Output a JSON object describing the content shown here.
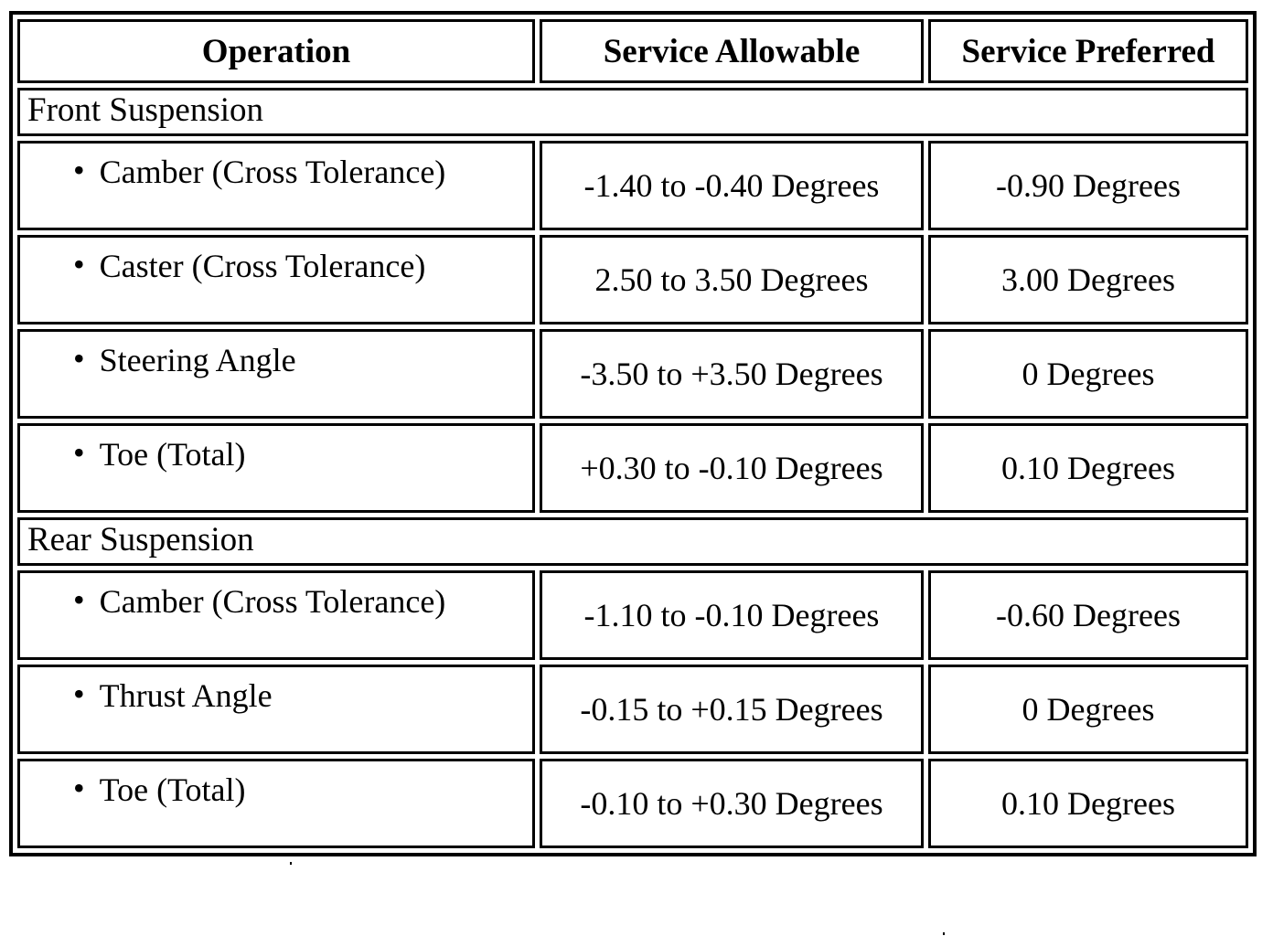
{
  "table": {
    "bullet": "•",
    "columns": [
      "Operation",
      "Service Allowable",
      "Service Preferred"
    ],
    "sections": [
      {
        "title": "Front Suspension",
        "rows": [
          {
            "operation": "Camber (Cross Tolerance)",
            "allowable": "-1.40 to -0.40 Degrees",
            "preferred": "-0.90 Degrees"
          },
          {
            "operation": "Caster (Cross Tolerance)",
            "allowable": "2.50 to 3.50 Degrees",
            "preferred": "3.00 Degrees"
          },
          {
            "operation": "Steering Angle",
            "allowable": "-3.50 to +3.50 Degrees",
            "preferred": "0 Degrees"
          },
          {
            "operation": "Toe (Total)",
            "allowable": "+0.30 to -0.10 Degrees",
            "preferred": "0.10 Degrees"
          }
        ]
      },
      {
        "title": "Rear Suspension",
        "rows": [
          {
            "operation": "Camber (Cross Tolerance)",
            "allowable": "-1.10 to -0.10 Degrees",
            "preferred": "-0.60 Degrees"
          },
          {
            "operation": "Thrust Angle",
            "allowable": "-0.15 to +0.15 Degrees",
            "preferred": "0 Degrees"
          },
          {
            "operation": "Toe (Total)",
            "allowable": "-0.10 to +0.30 Degrees",
            "preferred": "0.10 Degrees"
          }
        ]
      }
    ]
  },
  "colors": {
    "border": "#000000",
    "text": "#000000",
    "background": "#ffffff"
  }
}
